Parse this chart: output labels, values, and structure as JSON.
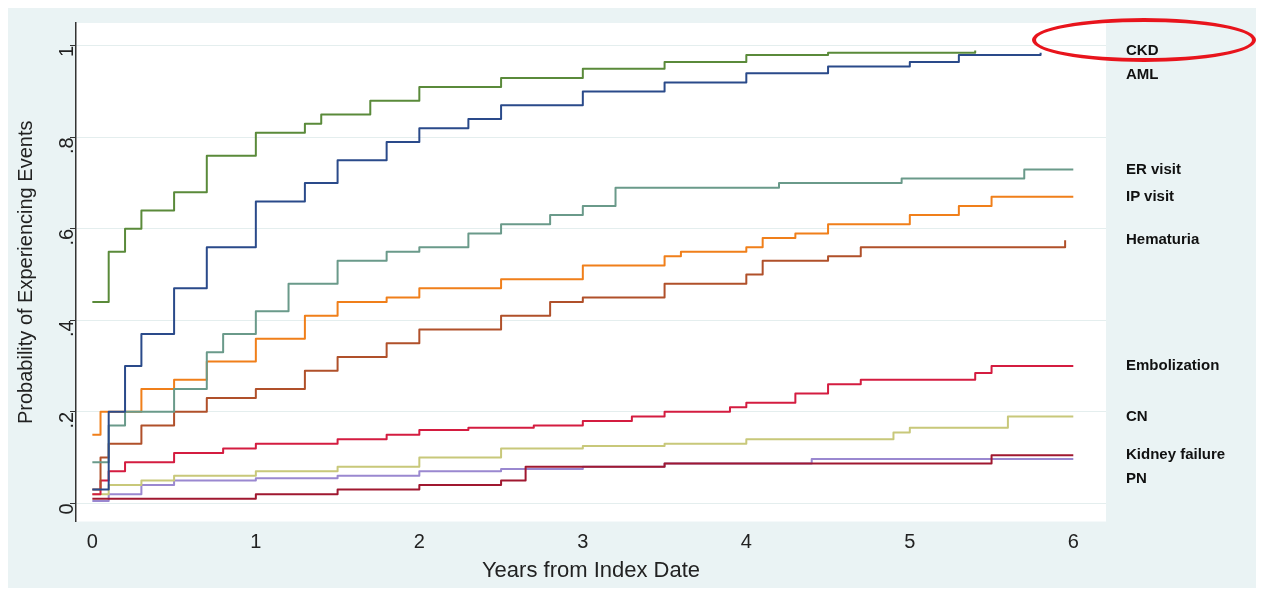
{
  "chart_data": {
    "type": "step",
    "xlabel": "Years from Index Date",
    "ylabel": "Probability of Experiencing Events",
    "xlim": [
      -0.1,
      6.2
    ],
    "ylim": [
      -0.04,
      1.05
    ],
    "xticks": [
      0,
      1,
      2,
      3,
      4,
      5,
      6
    ],
    "yticks": [
      {
        "value": 0,
        "label": "0"
      },
      {
        "value": 0.2,
        "label": ".2"
      },
      {
        "value": 0.4,
        "label": ".4"
      },
      {
        "value": 0.6,
        "label": ".6"
      },
      {
        "value": 0.8,
        "label": ".8"
      },
      {
        "value": 1,
        "label": "1"
      }
    ],
    "grid": "y",
    "legend": false,
    "line_style": "solid",
    "marker": "none",
    "series": [
      {
        "name": "CKD",
        "color": "#5a8a3a",
        "x": [
          0,
          0.1,
          0.2,
          0.3,
          0.5,
          0.7,
          1.0,
          1.3,
          1.4,
          1.7,
          2.0,
          2.5,
          3.0,
          3.5,
          4.0,
          4.5,
          5.0,
          5.4
        ],
        "values": [
          0.44,
          0.55,
          0.6,
          0.64,
          0.68,
          0.76,
          0.81,
          0.83,
          0.85,
          0.88,
          0.91,
          0.93,
          0.95,
          0.965,
          0.98,
          0.985,
          0.985,
          0.99
        ]
      },
      {
        "name": "AML",
        "color": "#2a4a8a",
        "x": [
          0,
          0.1,
          0.2,
          0.3,
          0.5,
          0.7,
          1.0,
          1.3,
          1.5,
          1.8,
          2.0,
          2.3,
          2.5,
          3.0,
          3.5,
          4.0,
          4.5,
          5.0,
          5.3,
          5.8
        ],
        "values": [
          0.03,
          0.2,
          0.3,
          0.37,
          0.47,
          0.56,
          0.66,
          0.7,
          0.75,
          0.79,
          0.82,
          0.84,
          0.87,
          0.9,
          0.92,
          0.94,
          0.955,
          0.965,
          0.98,
          0.985
        ]
      },
      {
        "name": "ER visit",
        "color": "#6a9a8a",
        "x": [
          0,
          0.1,
          0.2,
          0.5,
          0.7,
          0.8,
          1.0,
          1.2,
          1.5,
          1.8,
          2.0,
          2.3,
          2.5,
          2.8,
          3.0,
          3.2,
          4.2,
          4.95,
          5.7,
          6.0
        ],
        "values": [
          0.09,
          0.17,
          0.2,
          0.25,
          0.33,
          0.37,
          0.42,
          0.48,
          0.53,
          0.55,
          0.56,
          0.59,
          0.61,
          0.63,
          0.65,
          0.69,
          0.7,
          0.71,
          0.73,
          0.73
        ]
      },
      {
        "name": "IP visit",
        "color": "#f07f1a",
        "x": [
          0,
          0.05,
          0.3,
          0.5,
          0.7,
          1.0,
          1.3,
          1.5,
          1.8,
          2.0,
          2.5,
          3.0,
          3.5,
          3.6,
          4.0,
          4.1,
          4.3,
          4.5,
          5.0,
          5.3,
          5.5,
          6.0
        ],
        "values": [
          0.15,
          0.2,
          0.25,
          0.27,
          0.31,
          0.36,
          0.41,
          0.44,
          0.45,
          0.47,
          0.49,
          0.52,
          0.54,
          0.55,
          0.56,
          0.58,
          0.59,
          0.61,
          0.63,
          0.65,
          0.67,
          0.67
        ]
      },
      {
        "name": "Hematuria",
        "color": "#b0502a",
        "x": [
          0,
          0.05,
          0.1,
          0.3,
          0.5,
          0.7,
          1.0,
          1.3,
          1.5,
          1.8,
          2.0,
          2.5,
          2.8,
          3.0,
          3.5,
          4.0,
          4.1,
          4.5,
          4.7,
          5.0,
          5.95
        ],
        "values": [
          0.03,
          0.1,
          0.13,
          0.17,
          0.2,
          0.23,
          0.25,
          0.29,
          0.32,
          0.35,
          0.38,
          0.41,
          0.44,
          0.45,
          0.48,
          0.5,
          0.53,
          0.54,
          0.56,
          0.56,
          0.575
        ]
      },
      {
        "name": "Embolization",
        "color": "#d41c40",
        "x": [
          0,
          0.05,
          0.1,
          0.2,
          0.5,
          0.8,
          1.0,
          1.5,
          1.8,
          2.0,
          2.3,
          2.7,
          3.0,
          3.3,
          3.5,
          3.9,
          4.0,
          4.3,
          4.5,
          4.7,
          5.4,
          5.5,
          6.0
        ],
        "values": [
          0.02,
          0.05,
          0.07,
          0.09,
          0.11,
          0.12,
          0.13,
          0.14,
          0.15,
          0.16,
          0.165,
          0.17,
          0.18,
          0.19,
          0.2,
          0.21,
          0.22,
          0.24,
          0.26,
          0.27,
          0.285,
          0.3,
          0.3
        ]
      },
      {
        "name": "CN",
        "color": "#c8c87a",
        "x": [
          0,
          0.1,
          0.3,
          0.5,
          1.0,
          1.5,
          2.0,
          2.5,
          3.0,
          3.5,
          4.0,
          4.8,
          4.9,
          5.0,
          5.6,
          6.0
        ],
        "values": [
          0.02,
          0.04,
          0.05,
          0.06,
          0.07,
          0.08,
          0.1,
          0.12,
          0.125,
          0.13,
          0.14,
          0.14,
          0.155,
          0.165,
          0.19,
          0.19
        ]
      },
      {
        "name": "Kidney failure",
        "color": "#a01830",
        "x": [
          0,
          0.5,
          1.0,
          1.5,
          2.0,
          2.5,
          2.65,
          3.5,
          5.5,
          6.0
        ],
        "values": [
          0.01,
          0.01,
          0.02,
          0.03,
          0.04,
          0.05,
          0.08,
          0.087,
          0.105,
          0.105
        ]
      },
      {
        "name": "PN",
        "color": "#9a88d0",
        "x": [
          0,
          0.1,
          0.3,
          0.5,
          1.0,
          1.5,
          2.0,
          2.5,
          3.0,
          3.5,
          4.4,
          6.0
        ],
        "values": [
          0.005,
          0.02,
          0.04,
          0.05,
          0.055,
          0.06,
          0.07,
          0.075,
          0.08,
          0.087,
          0.097,
          0.097
        ]
      }
    ]
  }
}
